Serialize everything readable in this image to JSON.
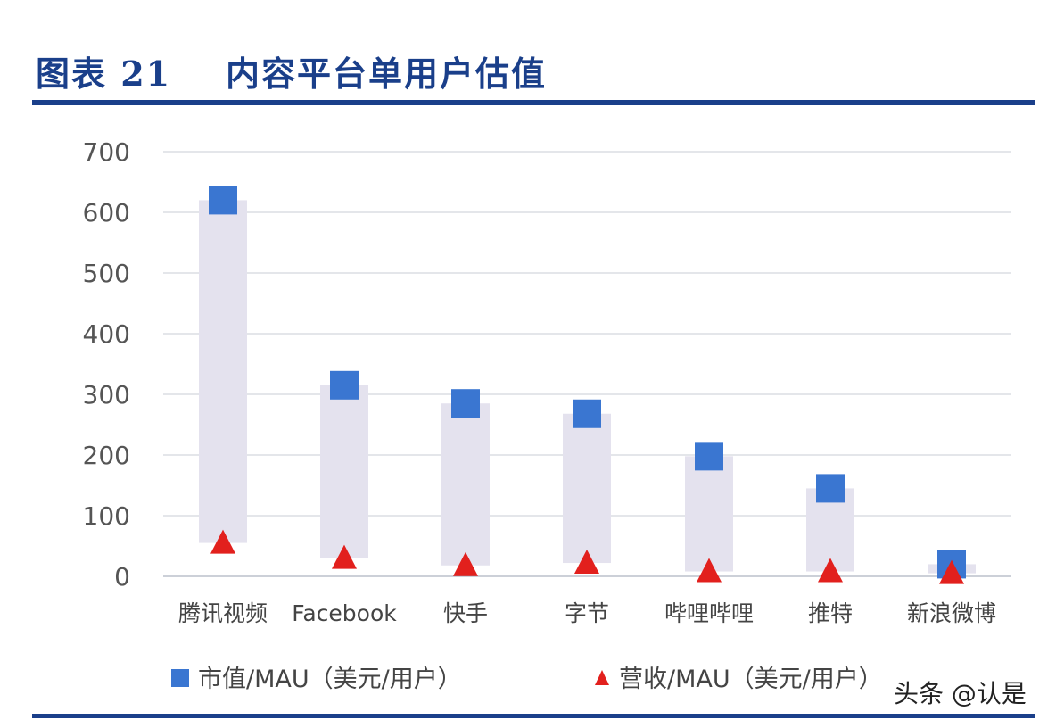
{
  "page": {
    "watermark": "头条 @认是"
  },
  "chart_data": {
    "type": "scatter",
    "title": "图表 21    内容平台单用户估值",
    "categories": [
      "腾讯视频",
      "Facebook",
      "快手",
      "字节",
      "哔哩哔哩",
      "推特",
      "新浪微博"
    ],
    "series": [
      {
        "name": "市值/MAU（美元/用户）",
        "marker": "square",
        "color": "#3a76d1",
        "values": [
          620,
          315,
          285,
          268,
          198,
          145,
          20
        ]
      },
      {
        "name": "营收/MAU（美元/用户）",
        "marker": "triangle",
        "color": "#e2201d",
        "values": [
          55,
          30,
          18,
          22,
          8,
          8,
          5
        ]
      }
    ],
    "range_bar_color": "#e4e2ee",
    "ylim": [
      0,
      700
    ],
    "yticks": [
      0,
      100,
      200,
      300,
      400,
      500,
      600,
      700
    ],
    "grid": true,
    "legend_position": "bottom",
    "xlabel": "",
    "ylabel": ""
  }
}
